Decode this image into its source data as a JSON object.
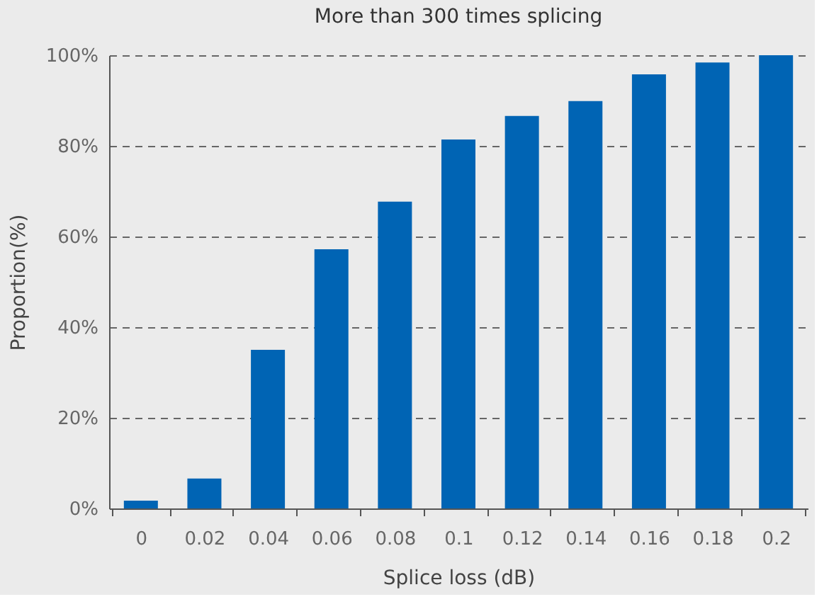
{
  "chart_data": {
    "type": "bar",
    "title": "More than 300 times splicing",
    "xlabel": "Splice loss (dB)",
    "ylabel": "Proportion(%)",
    "categories": [
      "0",
      "0.02",
      "0.04",
      "0.06",
      "0.08",
      "0.1",
      "0.12",
      "0.14",
      "0.16",
      "0.18",
      "0.2"
    ],
    "values": [
      1.7,
      6.6,
      35.0,
      57.2,
      67.7,
      81.4,
      86.6,
      89.9,
      95.8,
      98.4,
      100
    ],
    "color": "#0064b4",
    "ylim": [
      0,
      100
    ],
    "yticks": [
      {
        "value": 0,
        "label": "0%"
      },
      {
        "value": 20,
        "label": "20%"
      },
      {
        "value": 40,
        "label": "40%"
      },
      {
        "value": 60,
        "label": "60%"
      },
      {
        "value": 80,
        "label": "80%"
      },
      {
        "value": 100,
        "label": "100%"
      }
    ],
    "grid": "y"
  }
}
